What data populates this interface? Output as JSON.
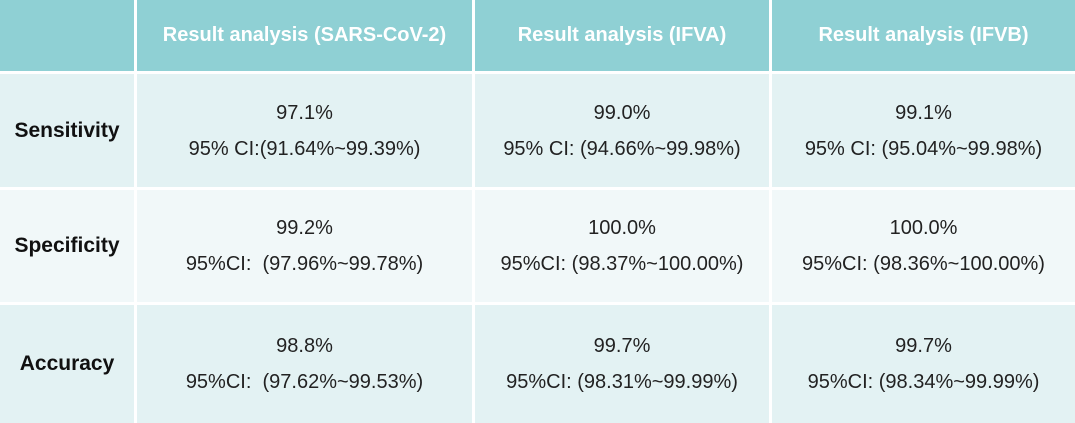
{
  "headers": [
    "",
    "Result analysis (SARS-CoV-2)",
    "Result analysis (IFVA)",
    "Result analysis (IFVB)"
  ],
  "rows": [
    {
      "label": "Sensitivity",
      "cells": [
        {
          "value": "97.1%",
          "ci": "95% CI:(91.64%~99.39%)"
        },
        {
          "value": "99.0%",
          "ci": "95% CI: (94.66%~99.98%)"
        },
        {
          "value": "99.1%",
          "ci": "95% CI: (95.04%~99.98%)"
        }
      ]
    },
    {
      "label": "Specificity",
      "cells": [
        {
          "value": "99.2%",
          "ci": "95%CI:  (97.96%~99.78%)"
        },
        {
          "value": "100.0%",
          "ci": "95%CI: (98.37%~100.00%)"
        },
        {
          "value": "100.0%",
          "ci": "95%CI: (98.36%~100.00%)"
        }
      ]
    },
    {
      "label": "Accuracy",
      "cells": [
        {
          "value": "98.8%",
          "ci": "95%CI:  (97.62%~99.53%)"
        },
        {
          "value": "99.7%",
          "ci": "95%CI: (98.31%~99.99%)"
        },
        {
          "value": "99.7%",
          "ci": "95%CI: (98.34%~99.99%)"
        }
      ]
    }
  ],
  "colors": {
    "header_bg": "#8fd0d4",
    "header_text": "#ffffff",
    "row_bg_a": "#e3f2f3",
    "row_bg_b": "#f1f8f9"
  }
}
